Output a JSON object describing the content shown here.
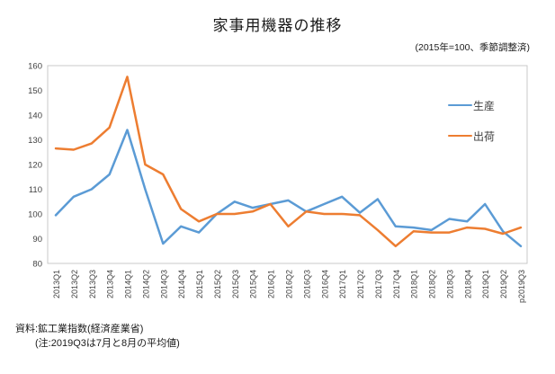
{
  "title": "家事用機器の推移",
  "subtitle": "(2015年=100、季節調整済)",
  "footnote": {
    "line1": "資料:鉱工業指数(経済産業省)",
    "line2": "(注:2019Q3は7月と8月の平均値)"
  },
  "chart_data": {
    "type": "line",
    "categories": [
      "2013Q1",
      "2013Q2",
      "2013Q3",
      "2013Q4",
      "2014Q1",
      "2014Q2",
      "2014Q3",
      "2014Q4",
      "2015Q1",
      "2015Q2",
      "2015Q3",
      "2015Q4",
      "2016Q1",
      "2016Q2",
      "2016Q3",
      "2016Q4",
      "2017Q1",
      "2017Q2",
      "2017Q3",
      "2017Q4",
      "2018Q1",
      "2018Q2",
      "2018Q3",
      "2018Q4",
      "2019Q1",
      "2019Q2",
      "p2019Q3"
    ],
    "series": [
      {
        "name": "生産",
        "color": "#5B9BD5",
        "values": [
          99.5,
          107,
          110,
          116,
          134,
          110,
          88,
          95,
          92.5,
          100,
          105,
          102.5,
          104,
          105.5,
          101,
          104,
          107,
          100.5,
          106,
          95,
          94.5,
          93.5,
          98,
          97,
          104,
          93,
          87
        ]
      },
      {
        "name": "出荷",
        "color": "#ED7D31",
        "values": [
          126.5,
          126,
          128.5,
          135,
          155.5,
          120,
          116,
          102,
          97,
          100,
          100,
          101,
          104,
          95,
          101,
          100,
          100,
          99.5,
          93.5,
          87,
          93,
          92.5,
          92.5,
          94.5,
          94,
          92,
          94.5
        ]
      }
    ],
    "ylim": [
      80,
      160
    ],
    "ytick_interval": 10,
    "grid": false,
    "legend_position": "inside-right",
    "axis_color": "#404040",
    "border_color": "#C9C9C9"
  }
}
